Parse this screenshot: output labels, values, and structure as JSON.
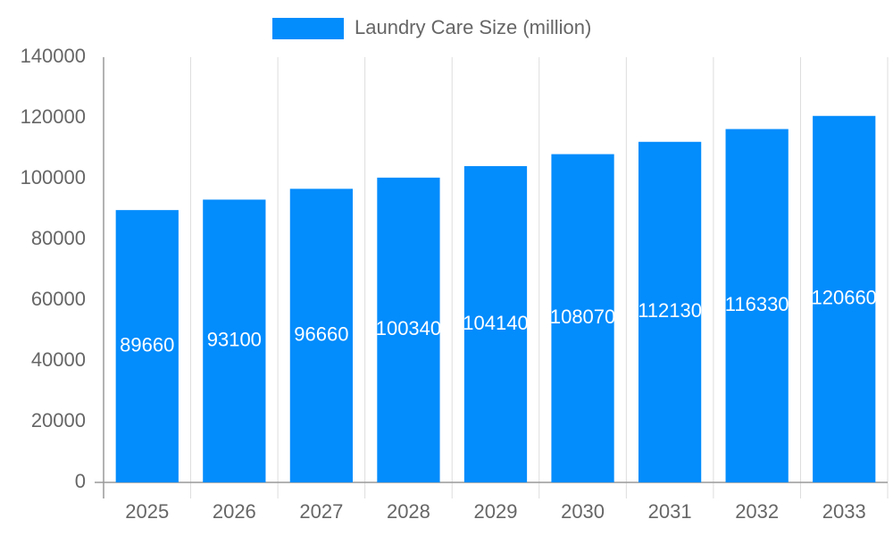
{
  "chart_data": {
    "type": "bar",
    "categories": [
      "2025",
      "2026",
      "2027",
      "2028",
      "2029",
      "2030",
      "2031",
      "2032",
      "2033"
    ],
    "series": [
      {
        "name": "Laundry Care Size (million)",
        "color": "#038cfc",
        "values": [
          89660,
          93100,
          96660,
          100340,
          104140,
          108070,
          112130,
          116330,
          120660
        ]
      }
    ],
    "ylim": [
      0,
      140000
    ],
    "yticks": [
      0,
      20000,
      40000,
      60000,
      80000,
      100000,
      120000,
      140000
    ],
    "grid": true,
    "legend": "top",
    "data_labels": true
  }
}
